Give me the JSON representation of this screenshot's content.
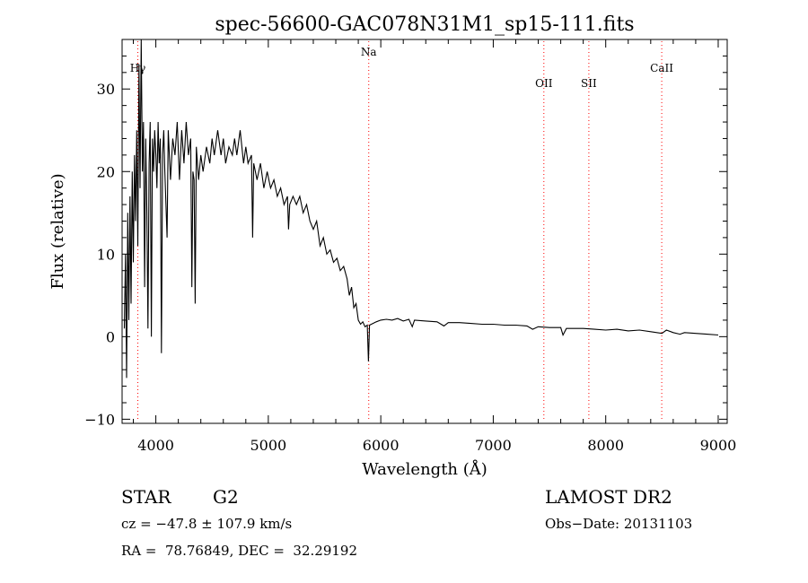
{
  "chart_data": {
    "type": "line",
    "title": "spec-56600-GAC078N31M1_sp15-111.fits",
    "xlabel": "Wavelength (Å)",
    "ylabel": "Flux (relative)",
    "xlim": [
      3700,
      9080
    ],
    "ylim": [
      -10.5,
      36
    ],
    "x_ticks": [
      4000,
      5000,
      6000,
      7000,
      8000,
      9000
    ],
    "y_ticks": [
      -10,
      0,
      10,
      20,
      30
    ],
    "grid": false,
    "line_color": "#000000",
    "marker_color": "#ff0000",
    "spectral_lines": [
      {
        "label": "Hγ",
        "wavelength": 3840
      },
      {
        "label": "Na",
        "wavelength": 5893
      },
      {
        "label": "OII",
        "wavelength": 7450
      },
      {
        "label": "SII",
        "wavelength": 7850
      },
      {
        "label": "CaII",
        "wavelength": 8498
      }
    ],
    "series": [
      {
        "values": [
          [
            3720,
            1
          ],
          [
            3730,
            10
          ],
          [
            3740,
            -5
          ],
          [
            3750,
            15
          ],
          [
            3760,
            2
          ],
          [
            3770,
            17
          ],
          [
            3780,
            4
          ],
          [
            3790,
            20
          ],
          [
            3800,
            9
          ],
          [
            3810,
            22
          ],
          [
            3820,
            14
          ],
          [
            3830,
            25
          ],
          [
            3840,
            11
          ],
          [
            3850,
            33
          ],
          [
            3860,
            18
          ],
          [
            3870,
            36
          ],
          [
            3880,
            20
          ],
          [
            3890,
            26
          ],
          [
            3900,
            6
          ],
          [
            3910,
            24
          ],
          [
            3920,
            15
          ],
          [
            3930,
            1
          ],
          [
            3940,
            21
          ],
          [
            3950,
            26
          ],
          [
            3960,
            0
          ],
          [
            3970,
            24
          ],
          [
            3980,
            20
          ],
          [
            3990,
            25
          ],
          [
            4000,
            22
          ],
          [
            4010,
            18
          ],
          [
            4020,
            26
          ],
          [
            4030,
            21
          ],
          [
            4040,
            24
          ],
          [
            4050,
            -2
          ],
          [
            4060,
            22
          ],
          [
            4070,
            25
          ],
          [
            4080,
            20
          ],
          [
            4100,
            12
          ],
          [
            4110,
            25
          ],
          [
            4130,
            19
          ],
          [
            4150,
            24
          ],
          [
            4170,
            22
          ],
          [
            4190,
            26
          ],
          [
            4210,
            19
          ],
          [
            4230,
            25
          ],
          [
            4250,
            21
          ],
          [
            4270,
            26
          ],
          [
            4290,
            22
          ],
          [
            4310,
            24
          ],
          [
            4320,
            6
          ],
          [
            4330,
            20
          ],
          [
            4340,
            19
          ],
          [
            4350,
            4
          ],
          [
            4360,
            23
          ],
          [
            4380,
            19
          ],
          [
            4400,
            22
          ],
          [
            4420,
            20
          ],
          [
            4450,
            23
          ],
          [
            4480,
            21
          ],
          [
            4500,
            24
          ],
          [
            4520,
            22
          ],
          [
            4550,
            25
          ],
          [
            4580,
            22
          ],
          [
            4600,
            24
          ],
          [
            4620,
            21
          ],
          [
            4650,
            23
          ],
          [
            4680,
            22
          ],
          [
            4700,
            24
          ],
          [
            4720,
            22
          ],
          [
            4750,
            25
          ],
          [
            4780,
            21
          ],
          [
            4800,
            23
          ],
          [
            4820,
            21
          ],
          [
            4850,
            22
          ],
          [
            4861,
            12
          ],
          [
            4870,
            21
          ],
          [
            4900,
            19
          ],
          [
            4930,
            21
          ],
          [
            4960,
            18
          ],
          [
            4990,
            20
          ],
          [
            5020,
            18
          ],
          [
            5050,
            19
          ],
          [
            5080,
            17
          ],
          [
            5110,
            18
          ],
          [
            5140,
            16
          ],
          [
            5170,
            17
          ],
          [
            5180,
            13
          ],
          [
            5190,
            16
          ],
          [
            5220,
            17
          ],
          [
            5250,
            16
          ],
          [
            5280,
            17
          ],
          [
            5310,
            15
          ],
          [
            5340,
            16
          ],
          [
            5370,
            14
          ],
          [
            5400,
            13
          ],
          [
            5430,
            14
          ],
          [
            5460,
            11
          ],
          [
            5490,
            12
          ],
          [
            5520,
            10
          ],
          [
            5550,
            10.5
          ],
          [
            5580,
            9
          ],
          [
            5610,
            9.5
          ],
          [
            5640,
            8
          ],
          [
            5670,
            8.5
          ],
          [
            5700,
            7
          ],
          [
            5720,
            5
          ],
          [
            5740,
            6
          ],
          [
            5760,
            3.5
          ],
          [
            5780,
            4
          ],
          [
            5800,
            2
          ],
          [
            5820,
            1.5
          ],
          [
            5840,
            1.8
          ],
          [
            5860,
            1.2
          ],
          [
            5880,
            1.4
          ],
          [
            5890,
            -3
          ],
          [
            5900,
            1.4
          ],
          [
            5930,
            1.6
          ],
          [
            5960,
            1.8
          ],
          [
            6000,
            2
          ],
          [
            6050,
            2.1
          ],
          [
            6100,
            2
          ],
          [
            6150,
            2.2
          ],
          [
            6200,
            1.9
          ],
          [
            6250,
            2.1
          ],
          [
            6280,
            1.2
          ],
          [
            6300,
            2
          ],
          [
            6400,
            1.9
          ],
          [
            6500,
            1.8
          ],
          [
            6562,
            1.3
          ],
          [
            6600,
            1.7
          ],
          [
            6700,
            1.7
          ],
          [
            6800,
            1.6
          ],
          [
            6900,
            1.5
          ],
          [
            7000,
            1.5
          ],
          [
            7100,
            1.4
          ],
          [
            7200,
            1.4
          ],
          [
            7300,
            1.3
          ],
          [
            7350,
            0.9
          ],
          [
            7400,
            1.2
          ],
          [
            7500,
            1.1
          ],
          [
            7600,
            1.1
          ],
          [
            7620,
            0.2
          ],
          [
            7650,
            1
          ],
          [
            7700,
            1
          ],
          [
            7800,
            1
          ],
          [
            7900,
            0.9
          ],
          [
            8000,
            0.8
          ],
          [
            8100,
            0.9
          ],
          [
            8200,
            0.7
          ],
          [
            8300,
            0.8
          ],
          [
            8400,
            0.6
          ],
          [
            8500,
            0.4
          ],
          [
            8540,
            0.8
          ],
          [
            8600,
            0.5
          ],
          [
            8660,
            0.3
          ],
          [
            8700,
            0.5
          ],
          [
            8800,
            0.4
          ],
          [
            8900,
            0.3
          ],
          [
            9000,
            0.2
          ]
        ]
      }
    ]
  },
  "info": {
    "object_type": "STAR",
    "subclass": "G2",
    "survey": "LAMOST DR2",
    "cz": "cz = −47.8 ± 107.9 km/s",
    "obs_date": "Obs−Date: 20131103",
    "radec": "RA =  78.76849, DEC =  32.29192"
  }
}
